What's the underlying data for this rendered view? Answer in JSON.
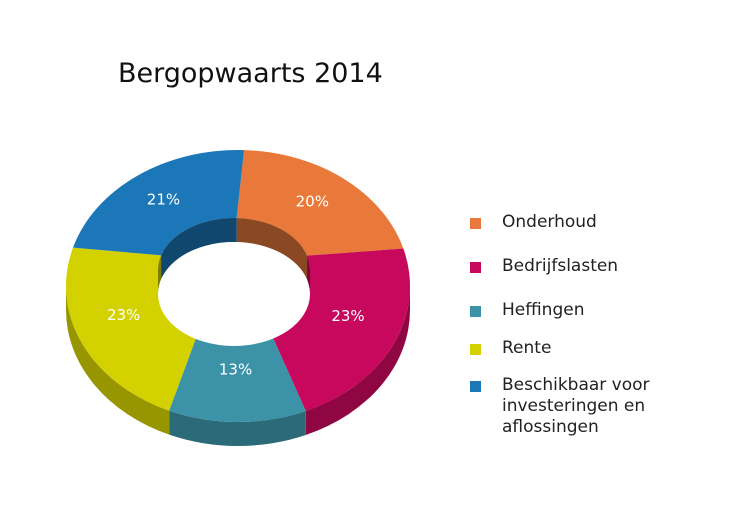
{
  "chart_data": {
    "type": "pie",
    "title": "Bergopwaarts 2014",
    "series": [
      {
        "name": "Onderhoud",
        "value": 20,
        "label": "20%",
        "color": "#E8793A"
      },
      {
        "name": "Bedrijfslasten",
        "value": 23,
        "label": "23%",
        "color": "#C8085C"
      },
      {
        "name": "Heffingen",
        "value": 13,
        "label": "13%",
        "color": "#3C93A8"
      },
      {
        "name": "Rente",
        "value": 23,
        "label": "23%",
        "color": "#D3D100"
      },
      {
        "name": "Beschikbaar voor investeringen en aflossingen",
        "value": 21,
        "label": "21%",
        "color": "#1B77B7"
      }
    ],
    "legend_position": "right",
    "style": "3d-donut"
  }
}
